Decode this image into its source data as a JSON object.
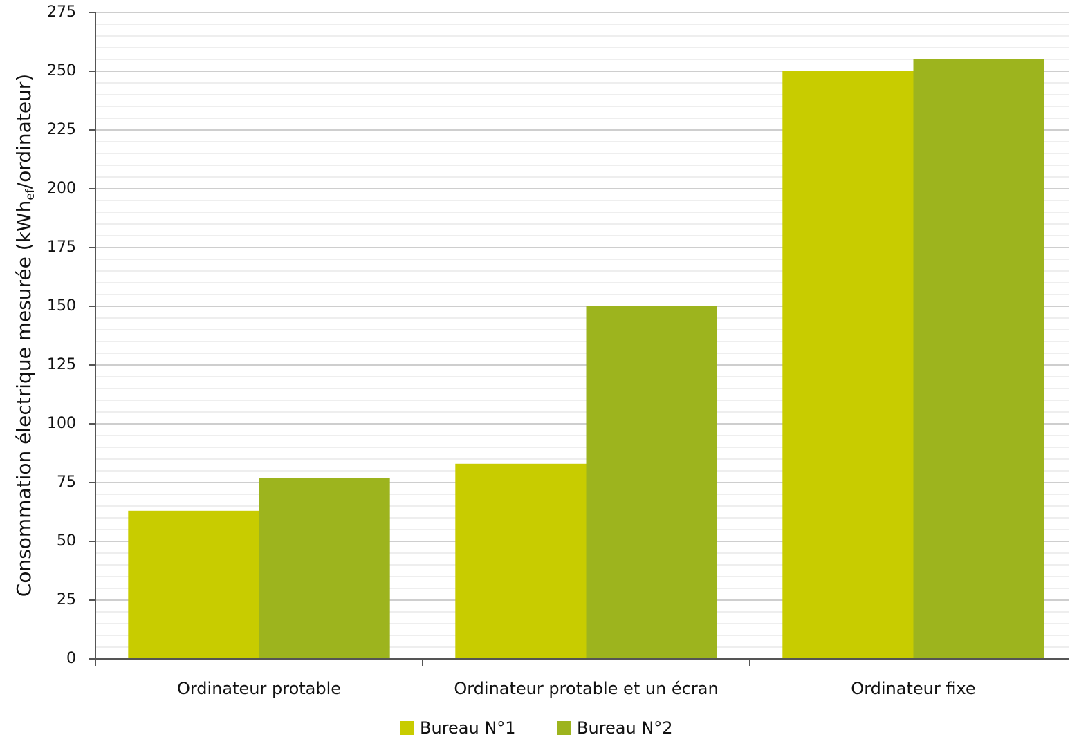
{
  "chart_data": {
    "type": "bar",
    "ylabel": [
      "Consommation électrique mesurée (kWh",
      "ef",
      "/ordinateur)"
    ],
    "categories": [
      "Ordinateur protable",
      "Ordinateur protable et un écran",
      "Ordinateur fixe"
    ],
    "series": [
      {
        "name": "Bureau N°1",
        "color": "#c8cc00",
        "values": [
          63,
          83,
          250
        ]
      },
      {
        "name": "Bureau N°2",
        "color": "#9db41e",
        "values": [
          77,
          150,
          255
        ]
      }
    ],
    "ylim": [
      0,
      275
    ],
    "yticks": [
      0,
      25,
      50,
      75,
      100,
      125,
      150,
      175,
      200,
      225,
      250,
      275
    ],
    "grid": true,
    "minor_grid_step": 5,
    "legend": "bottom"
  }
}
